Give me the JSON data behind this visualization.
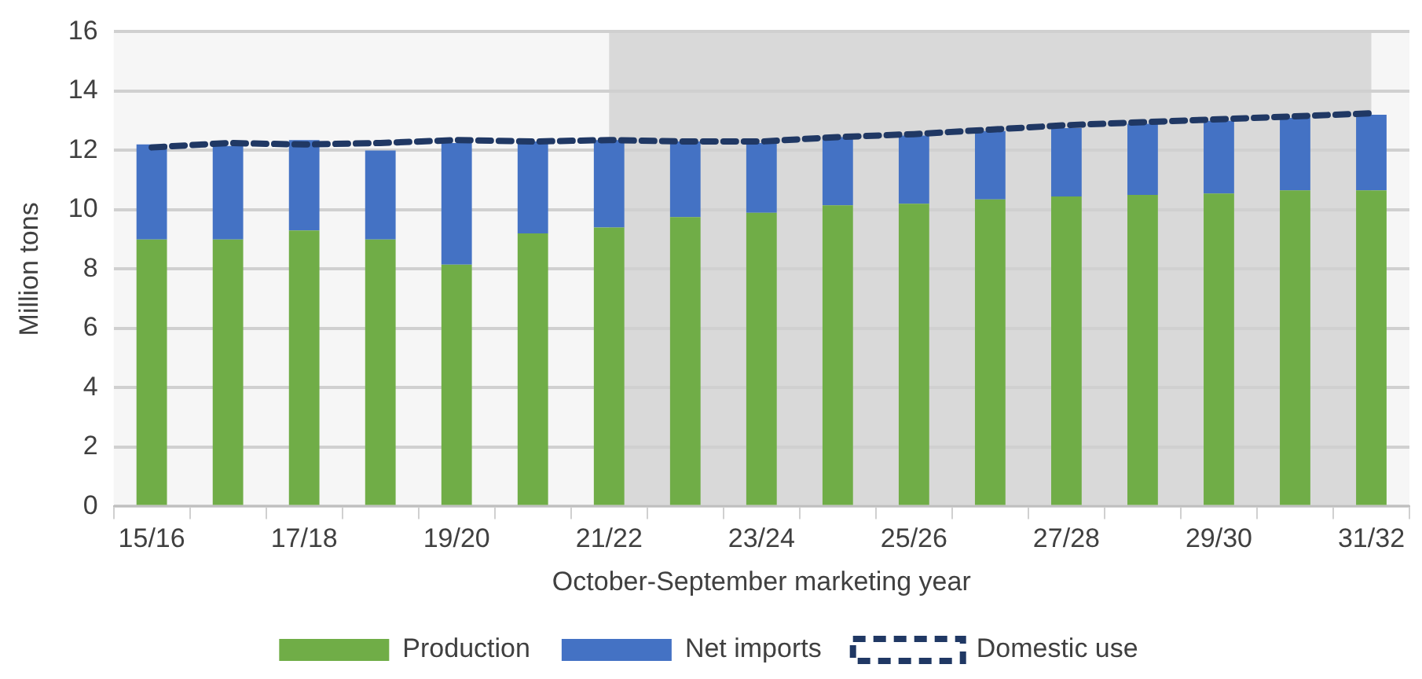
{
  "chart_data": {
    "type": "bar",
    "stacked": true,
    "xlabel": "October-September marketing year",
    "ylabel": "Million tons",
    "categories": [
      "15/16",
      null,
      "17/18",
      null,
      "19/20",
      null,
      "21/22",
      null,
      "23/24",
      null,
      "25/26",
      null,
      "27/28",
      null,
      "29/30",
      null,
      "31/32"
    ],
    "series": [
      {
        "name": "Production",
        "color": "#70ad47",
        "values": [
          9.0,
          9.0,
          9.3,
          9.0,
          8.15,
          9.2,
          9.4,
          9.75,
          9.9,
          10.15,
          10.2,
          10.35,
          10.45,
          10.5,
          10.55,
          10.65,
          10.65
        ]
      },
      {
        "name": "Net imports",
        "color": "#4472c4",
        "values": [
          3.2,
          3.15,
          3.05,
          3.0,
          4.1,
          3.1,
          2.95,
          2.55,
          2.35,
          2.3,
          2.3,
          2.3,
          2.3,
          2.4,
          2.45,
          2.45,
          2.55
        ]
      },
      {
        "name": "Domestic use",
        "type": "line",
        "line_style": "dashed",
        "marker": "none",
        "color": "#203864",
        "values": [
          12.1,
          12.25,
          12.2,
          12.25,
          12.35,
          12.3,
          12.35,
          12.3,
          12.3,
          12.45,
          12.55,
          12.7,
          12.85,
          12.95,
          13.05,
          13.15,
          13.25
        ]
      }
    ],
    "ylim": [
      0,
      16
    ],
    "yticks": [
      0,
      2,
      4,
      6,
      8,
      10,
      12,
      14,
      16
    ],
    "bands": [
      {
        "axis": "x",
        "from": "21/22",
        "to": "31/32",
        "color": "#d9d9d9"
      }
    ],
    "grid": "y",
    "legend": "bottom"
  }
}
